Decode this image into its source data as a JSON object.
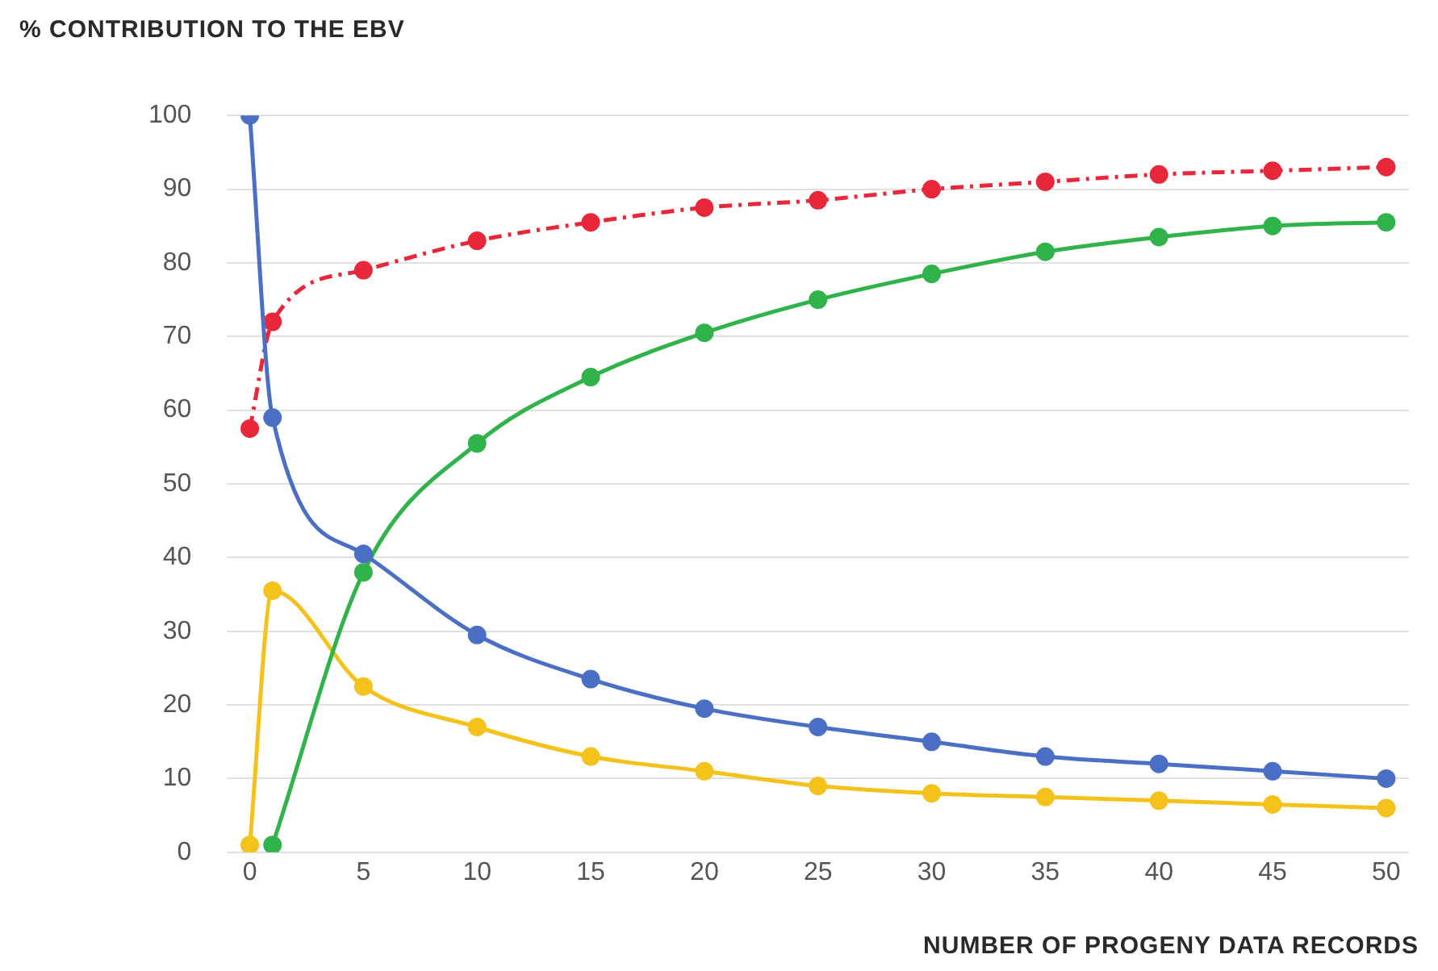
{
  "chart_data": {
    "type": "line",
    "ylabel": "% CONTRIBUTION TO THE EBV",
    "xlabel": "NUMBER OF PROGENY DATA RECORDS",
    "xlim": [
      -1,
      51
    ],
    "xticks": [
      0,
      5,
      10,
      15,
      20,
      25,
      30,
      35,
      40,
      45,
      50
    ],
    "ylim": [
      0,
      100
    ],
    "yticks": [
      0,
      10,
      20,
      30,
      40,
      50,
      60,
      70,
      80,
      90,
      100
    ],
    "grid": "y",
    "legend": false,
    "marker": "circle",
    "series": [
      {
        "color": "#4a6fc4",
        "x": [
          0,
          1,
          5,
          10,
          15,
          20,
          25,
          30,
          35,
          40,
          45,
          50
        ],
        "values": [
          100,
          59,
          40.5,
          29.5,
          23.5,
          19.5,
          17,
          15,
          13,
          12,
          11,
          10
        ]
      },
      {
        "color": "#2fb34a",
        "x": [
          1,
          5,
          10,
          15,
          20,
          25,
          30,
          35,
          40,
          45,
          50
        ],
        "values": [
          1,
          38,
          55.5,
          64.5,
          70.5,
          75,
          78.5,
          81.5,
          83.5,
          85,
          85.5
        ]
      },
      {
        "color": "#e8283a",
        "line_style": "dashed",
        "x": [
          0,
          1,
          5,
          10,
          15,
          20,
          25,
          30,
          35,
          40,
          45,
          50
        ],
        "values": [
          57.5,
          72,
          79,
          83,
          85.5,
          87.5,
          88.5,
          90,
          91,
          92,
          92.5,
          93
        ]
      },
      {
        "color": "#f5c21b",
        "x": [
          0,
          1,
          5,
          10,
          15,
          20,
          25,
          30,
          35,
          40,
          45,
          50
        ],
        "values": [
          1,
          35.5,
          22.5,
          17,
          13,
          11,
          9,
          8,
          7.5,
          7,
          6.5,
          6
        ]
      }
    ]
  }
}
